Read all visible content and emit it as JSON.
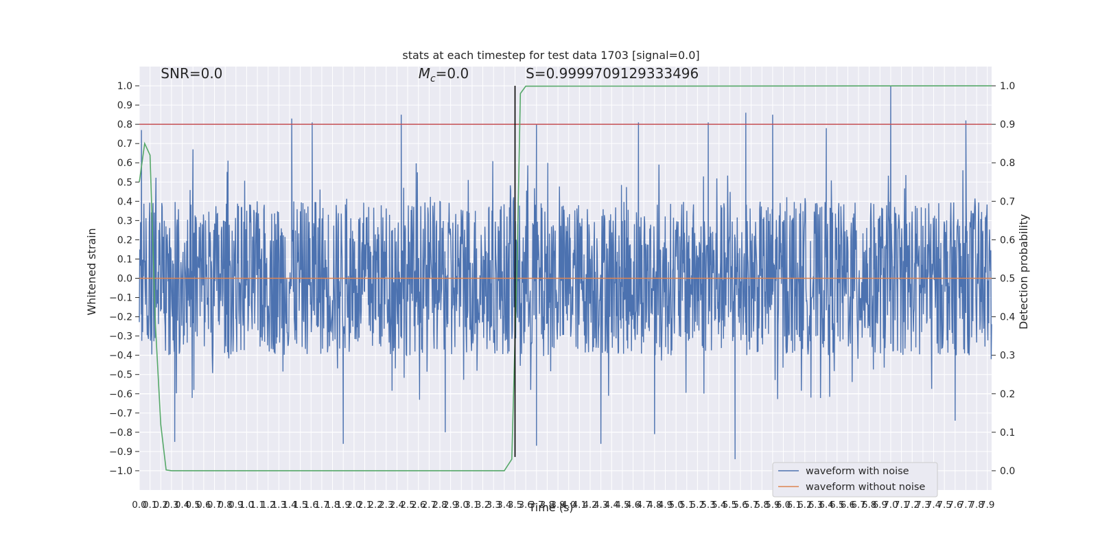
{
  "chart_data": {
    "type": "line",
    "title": "stats at each timestep for test data 1703 [signal=0.0]",
    "xlabel": "Time (s)",
    "ylabel": "Whitened strain",
    "y2label": "Detection probability",
    "xlim": [
      0.0,
      7.94
    ],
    "ylim": [
      -1.1,
      1.1
    ],
    "y2lim": [
      -0.05,
      1.05
    ],
    "x_ticks": [
      0.0,
      0.1,
      0.2,
      0.3,
      0.4,
      0.5,
      0.6,
      0.7,
      0.8,
      0.9,
      1.0,
      1.1,
      1.2,
      1.3,
      1.4,
      1.5,
      1.6,
      1.7,
      1.8,
      1.9,
      2.0,
      2.1,
      2.2,
      2.3,
      2.4,
      2.5,
      2.6,
      2.7,
      2.8,
      2.9,
      3.0,
      3.1,
      3.2,
      3.3,
      3.4,
      3.5,
      3.6,
      3.7,
      3.8,
      3.9,
      4.0,
      4.1,
      4.2,
      4.3,
      4.4,
      4.5,
      4.6,
      4.7,
      4.8,
      4.9,
      5.0,
      5.1,
      5.2,
      5.3,
      5.4,
      5.5,
      5.6,
      5.7,
      5.8,
      5.9,
      6.0,
      6.1,
      6.2,
      6.3,
      6.4,
      6.5,
      6.6,
      6.7,
      6.8,
      6.9,
      7.0,
      7.1,
      7.2,
      7.3,
      7.4,
      7.5,
      7.6,
      7.7,
      7.8,
      7.9
    ],
    "x_tick_labels": [
      "0.0",
      "0.1",
      "0.2",
      "0.3",
      "0.4",
      "0.5",
      "0.6",
      "0.7",
      "0.8",
      "0.9",
      "1.0",
      "1.1",
      "1.2",
      "1.3",
      "1.4",
      "1.5",
      "1.6",
      "1.7",
      "1.8",
      "1.9",
      "2.0",
      "2.1",
      "2.2",
      "2.3",
      "2.4",
      "2.5",
      "2.6",
      "2.7",
      "2.8",
      "2.9",
      "3.0",
      "3.1",
      "3.2",
      "3.3",
      "3.4",
      "3.5",
      "3.6",
      "3.7",
      "3.8",
      "3.9",
      "4.0",
      "4.1",
      "4.2",
      "4.3",
      "4.4",
      "4.5",
      "4.6",
      "4.7",
      "4.8",
      "4.9",
      "5.0",
      "5.1",
      "5.2",
      "5.3",
      "5.4",
      "5.5",
      "5.6",
      "5.7",
      "5.8",
      "5.9",
      "6.0",
      "6.1",
      "6.2",
      "6.3",
      "6.4",
      "6.5",
      "6.6",
      "6.7",
      "6.8",
      "6.9",
      "7.0",
      "7.1",
      "7.2",
      "7.3",
      "7.4",
      "7.5",
      "7.6",
      "7.7",
      "7.8",
      "7.9"
    ],
    "y_ticks": [
      -1.0,
      -0.9,
      -0.8,
      -0.7,
      -0.6,
      -0.5,
      -0.4,
      -0.3,
      -0.2,
      -0.1,
      0.0,
      0.1,
      0.2,
      0.3,
      0.4,
      0.5,
      0.6,
      0.7,
      0.8,
      0.9,
      1.0
    ],
    "y_tick_labels": [
      "−1.0",
      "−0.9",
      "−0.8",
      "−0.7",
      "−0.6",
      "−0.5",
      "−0.4",
      "−0.3",
      "−0.2",
      "−0.1",
      "0.0",
      "0.1",
      "0.2",
      "0.3",
      "0.4",
      "0.5",
      "0.6",
      "0.7",
      "0.8",
      "0.9",
      "1.0"
    ],
    "y2_ticks": [
      0.0,
      0.1,
      0.2,
      0.3,
      0.4,
      0.5,
      0.6,
      0.7,
      0.8,
      0.9,
      1.0
    ],
    "y2_tick_labels": [
      "0.0",
      "0.1",
      "0.2",
      "0.3",
      "0.4",
      "0.5",
      "0.6",
      "0.7",
      "0.8",
      "0.9",
      "1.0"
    ],
    "grid": true,
    "legend": "lower-right",
    "annotations": [
      {
        "id": "snr",
        "text": "SNR=0.0",
        "x": 0.2,
        "y": 1.04
      },
      {
        "id": "mc",
        "text_main": "M",
        "text_sub": "c",
        "text_rest": "=0.0",
        "x": 2.6,
        "y": 1.04
      },
      {
        "id": "s",
        "text": "S=0.9999709129333496",
        "x": 3.6,
        "y": 1.04
      }
    ],
    "threshold_line": {
      "y": 0.9,
      "color": "#c44e52",
      "axis": "y2"
    },
    "detection_marker": {
      "x": 3.5,
      "y_from": -0.9,
      "y_to": 1.0,
      "color": "#000000"
    },
    "series": [
      {
        "name": "waveform with noise",
        "color": "#4c72b0",
        "noise": {
          "x_start": 0.0,
          "x_end": 7.94,
          "samples": 2048,
          "typical_amplitude": 0.4
        },
        "peaks": [
          [
            0.02,
            0.77
          ],
          [
            0.5,
            0.67
          ],
          [
            1.42,
            0.83
          ],
          [
            1.61,
            0.81
          ],
          [
            2.44,
            0.85
          ],
          [
            3.7,
            0.8
          ],
          [
            4.65,
            0.81
          ],
          [
            5.3,
            0.81
          ],
          [
            5.65,
            0.86
          ],
          [
            5.9,
            0.85
          ],
          [
            6.4,
            0.78
          ],
          [
            7.0,
            1.0
          ],
          [
            7.7,
            0.82
          ],
          [
            0.33,
            -0.85
          ],
          [
            1.9,
            -0.86
          ],
          [
            2.85,
            -0.8
          ],
          [
            3.7,
            -0.87
          ],
          [
            4.3,
            -0.86
          ],
          [
            4.8,
            -0.81
          ],
          [
            5.55,
            -0.94
          ],
          [
            7.6,
            -0.74
          ]
        ]
      },
      {
        "name": "waveform without noise",
        "color": "#dd8452",
        "x": [
          0.0,
          7.94
        ],
        "y": [
          0.0,
          0.0
        ]
      },
      {
        "name": "detection probability",
        "color": "#55a868",
        "axis": "y2",
        "x": [
          0.0,
          0.05,
          0.1,
          0.15,
          0.2,
          0.25,
          0.3,
          0.4,
          3.4,
          3.47,
          3.52,
          3.55,
          3.6,
          7.94
        ],
        "y": [
          0.75,
          0.85,
          0.82,
          0.38,
          0.12,
          0.002,
          0.0,
          0.0,
          0.0,
          0.03,
          0.55,
          0.98,
          0.999,
          0.9999709129333496
        ]
      }
    ]
  }
}
